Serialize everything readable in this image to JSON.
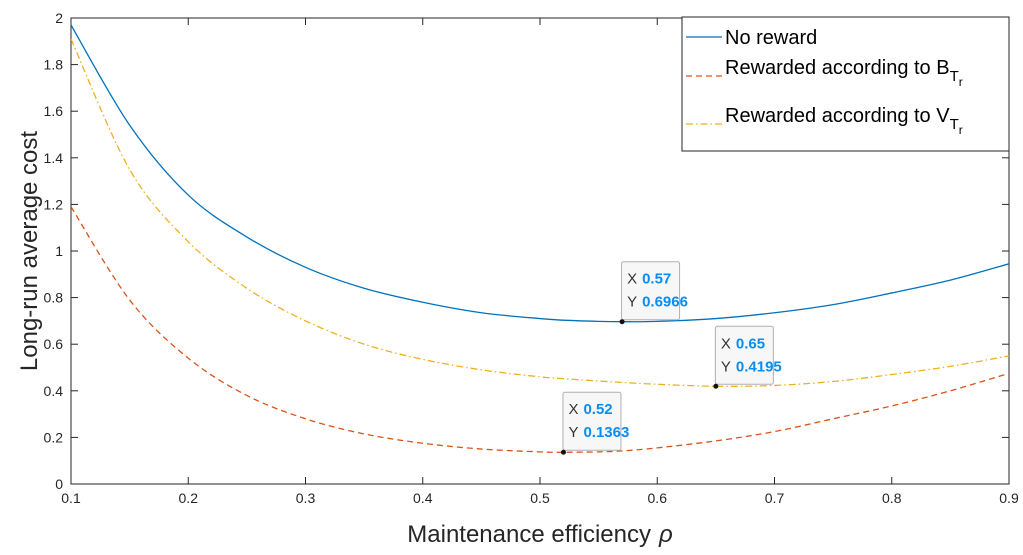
{
  "chart_data": {
    "type": "line",
    "xlabel": "Maintenance efficiency",
    "xlabel_symbol": "ρ",
    "ylabel": "Long-run average cost",
    "xlim": [
      0.1,
      0.9
    ],
    "ylim": [
      0,
      2
    ],
    "xticks": [
      "0.1",
      "0.2",
      "0.3",
      "0.4",
      "0.5",
      "0.6",
      "0.7",
      "0.8",
      "0.9"
    ],
    "yticks": [
      "0",
      "0.2",
      "0.4",
      "0.6",
      "0.8",
      "1",
      "1.2",
      "1.4",
      "1.6",
      "1.8",
      "2"
    ],
    "x": [
      0.1,
      0.15,
      0.2,
      0.25,
      0.3,
      0.35,
      0.4,
      0.45,
      0.5,
      0.52,
      0.55,
      0.57,
      0.6,
      0.65,
      0.7,
      0.75,
      0.8,
      0.85,
      0.9
    ],
    "series": [
      {
        "name": "No reward",
        "color": "#0072BD",
        "dash": "solid",
        "values": [
          1.97,
          1.54,
          1.24,
          1.06,
          0.93,
          0.84,
          0.78,
          0.735,
          0.71,
          0.703,
          0.698,
          0.6966,
          0.698,
          0.71,
          0.735,
          0.77,
          0.82,
          0.875,
          0.945
        ]
      },
      {
        "name_main": "Rewarded according to B",
        "name_sub1": "T",
        "name_sub2": "r",
        "color": "#D95319",
        "dash": "dashed",
        "values": [
          1.19,
          0.79,
          0.54,
          0.38,
          0.28,
          0.215,
          0.175,
          0.15,
          0.138,
          0.1363,
          0.138,
          0.142,
          0.155,
          0.185,
          0.225,
          0.28,
          0.335,
          0.4,
          0.475
        ]
      },
      {
        "name_main": "Rewarded according to V",
        "name_sub1": "T",
        "name_sub2": "r",
        "color": "#EDB120",
        "dash": "dashdot",
        "values": [
          1.91,
          1.35,
          1.04,
          0.84,
          0.7,
          0.6,
          0.535,
          0.49,
          0.46,
          0.452,
          0.442,
          0.436,
          0.428,
          0.4195,
          0.423,
          0.44,
          0.47,
          0.505,
          0.55
        ]
      }
    ],
    "datatips": [
      {
        "x_key": "X",
        "x_val": "0.57",
        "y_key": "Y",
        "y_val": "0.6966",
        "x": 0.57,
        "y": 0.6966
      },
      {
        "x_key": "X",
        "x_val": "0.65",
        "y_key": "Y",
        "y_val": "0.4195",
        "x": 0.65,
        "y": 0.4195
      },
      {
        "x_key": "X",
        "x_val": "0.52",
        "y_key": "Y",
        "y_val": "0.1363",
        "x": 0.52,
        "y": 0.1363
      }
    ],
    "datatip_value_color": "#0A8DF0",
    "legend_position": "top-right",
    "grid": false
  }
}
